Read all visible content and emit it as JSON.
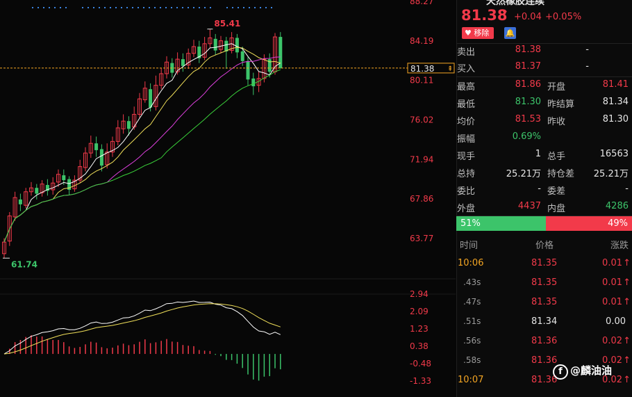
{
  "title_partial": "天然橡胶连续",
  "price": {
    "last": "81.38",
    "change": "+0.04",
    "change_pct": "+0.05%",
    "remove_label": "移除"
  },
  "order_book": [
    {
      "label": "卖出",
      "price": "81.38",
      "qty": "-"
    },
    {
      "label": "买入",
      "price": "81.37",
      "qty": "-"
    }
  ],
  "stats": [
    {
      "l1": "最高",
      "v1": "81.86",
      "c1": "red",
      "l2": "开盘",
      "v2": "81.41",
      "c2": "red"
    },
    {
      "l1": "最低",
      "v1": "81.30",
      "c1": "green",
      "l2": "昨结算",
      "v2": "81.34",
      "c2": "white"
    },
    {
      "l1": "均价",
      "v1": "81.53",
      "c1": "red",
      "l2": "昨收",
      "v2": "81.30",
      "c2": "white"
    },
    {
      "l1": "振幅",
      "v1": "0.69%",
      "c1": "green",
      "l2": "",
      "v2": "",
      "c2": "white"
    },
    {
      "l1": "现手",
      "v1": "1",
      "c1": "white",
      "l2": "总手",
      "v2": "16563",
      "c2": "white"
    },
    {
      "l1": "总持",
      "v1": "25.21万",
      "c1": "white",
      "l2": "持仓差",
      "v2": "25.21万",
      "c2": "white"
    },
    {
      "l1": "委比",
      "v1": "-",
      "c1": "white",
      "l2": "委差",
      "v2": "-",
      "c2": "white"
    },
    {
      "l1": "外盘",
      "v1": "4437",
      "c1": "red",
      "l2": "内盘",
      "v2": "4286",
      "c2": "green"
    }
  ],
  "ratio": {
    "buy_pct": 51,
    "buy_label": "51%",
    "sell_label": "49%"
  },
  "ticks_header": {
    "time": "时间",
    "price": "价格",
    "change": "涨跌"
  },
  "ticks": [
    {
      "time": "10:06",
      "price": "81.35",
      "change": "0.01",
      "dir": "up",
      "time_color": "orange"
    },
    {
      "time": ".43s",
      "price": "81.35",
      "change": "0.01",
      "dir": "up",
      "time_color": "grey"
    },
    {
      "time": ".47s",
      "price": "81.35",
      "change": "0.01",
      "dir": "up",
      "time_color": "grey"
    },
    {
      "time": ".51s",
      "price": "81.34",
      "change": "0.00",
      "dir": "flat",
      "time_color": "grey"
    },
    {
      "time": ".56s",
      "price": "81.36",
      "change": "0.02",
      "dir": "up",
      "time_color": "grey"
    },
    {
      "time": ".58s",
      "price": "81.36",
      "change": "0.02",
      "dir": "up",
      "time_color": "grey"
    },
    {
      "time": "10:07",
      "price": "81.36",
      "change": "0.02",
      "dir": "up",
      "time_color": "orange"
    }
  ],
  "watermark": "@麟油油",
  "chart_data": {
    "type": "candlestick",
    "price_axis_labels": [
      "88.27",
      "84.19",
      "80.11",
      "76.02",
      "71.94",
      "67.86",
      "63.77"
    ],
    "price_axis_values": [
      88.27,
      84.19,
      80.11,
      76.02,
      71.94,
      67.86,
      63.77
    ],
    "current_price_tag": "81.38",
    "current_price": 81.38,
    "high_label": "85.41",
    "low_label": "61.74",
    "high": 85.41,
    "low": 61.74,
    "candles": [
      [
        62.2,
        63.4,
        61.74,
        63.8
      ],
      [
        63.5,
        66.1,
        63.0,
        66.5
      ],
      [
        66.0,
        68.0,
        65.6,
        68.6
      ],
      [
        67.8,
        67.3,
        66.6,
        68.4
      ],
      [
        67.2,
        68.6,
        66.9,
        69.0
      ],
      [
        68.6,
        69.0,
        68.2,
        69.6
      ],
      [
        69.0,
        68.4,
        67.8,
        69.4
      ],
      [
        68.5,
        69.4,
        68.1,
        69.8
      ],
      [
        69.3,
        68.7,
        68.2,
        69.9
      ],
      [
        68.8,
        69.5,
        68.3,
        70.1
      ],
      [
        69.6,
        70.4,
        69.1,
        70.9
      ],
      [
        70.3,
        69.8,
        69.3,
        70.9
      ],
      [
        69.9,
        68.8,
        68.3,
        70.2
      ],
      [
        68.9,
        69.8,
        68.6,
        70.3
      ],
      [
        69.8,
        71.2,
        69.5,
        71.9
      ],
      [
        71.1,
        72.6,
        70.7,
        73.2
      ],
      [
        72.6,
        73.6,
        72.1,
        74.4
      ],
      [
        73.6,
        72.9,
        72.2,
        74.3
      ],
      [
        73.0,
        71.3,
        70.7,
        73.5
      ],
      [
        71.4,
        72.7,
        71.0,
        73.6
      ],
      [
        72.7,
        73.8,
        72.2,
        74.3
      ],
      [
        73.8,
        75.2,
        73.4,
        76.0
      ],
      [
        75.1,
        75.9,
        74.6,
        76.6
      ],
      [
        75.9,
        75.1,
        74.4,
        76.4
      ],
      [
        75.3,
        76.6,
        75.0,
        77.4
      ],
      [
        76.6,
        78.2,
        76.2,
        78.8
      ],
      [
        78.1,
        79.3,
        77.8,
        80.0
      ],
      [
        79.2,
        77.3,
        76.9,
        79.8
      ],
      [
        77.4,
        79.6,
        77.0,
        80.6
      ],
      [
        79.6,
        80.8,
        79.2,
        81.4
      ],
      [
        80.8,
        82.0,
        80.3,
        82.6
      ],
      [
        81.9,
        80.9,
        80.4,
        82.4
      ],
      [
        81.0,
        82.3,
        80.7,
        83.0
      ],
      [
        82.3,
        81.6,
        81.0,
        82.9
      ],
      [
        81.7,
        82.9,
        81.3,
        83.4
      ],
      [
        82.9,
        83.6,
        82.5,
        84.3
      ],
      [
        83.6,
        82.4,
        81.9,
        84.2
      ],
      [
        82.5,
        83.9,
        82.2,
        84.6
      ],
      [
        83.9,
        84.5,
        83.5,
        85.41
      ],
      [
        84.4,
        83.2,
        82.7,
        84.9
      ],
      [
        83.3,
        84.2,
        82.9,
        84.7
      ],
      [
        84.2,
        83.1,
        81.3,
        84.6
      ],
      [
        83.2,
        84.5,
        82.9,
        85.1
      ],
      [
        84.5,
        83.0,
        82.4,
        84.9
      ],
      [
        83.1,
        82.1,
        81.6,
        83.6
      ],
      [
        82.1,
        80.2,
        79.6,
        82.5
      ],
      [
        80.3,
        79.5,
        78.6,
        80.9
      ],
      [
        79.6,
        80.3,
        78.9,
        81.0
      ],
      [
        80.3,
        82.3,
        79.9,
        82.8
      ],
      [
        82.3,
        81.0,
        80.4,
        82.9
      ],
      [
        81.0,
        84.6,
        80.7,
        85.0
      ],
      [
        84.6,
        81.38,
        81.3,
        85.1
      ]
    ],
    "ma_colors": [
      "#ffffff",
      "#f1e05a",
      "#e040e0",
      "#3ad13a"
    ],
    "macd_axis_labels": [
      "2.94",
      "2.09",
      "1.23",
      "0.38",
      "-0.48",
      "-1.33"
    ],
    "macd_axis_values": [
      2.94,
      2.09,
      1.23,
      0.38,
      -0.48,
      -1.33
    ]
  }
}
